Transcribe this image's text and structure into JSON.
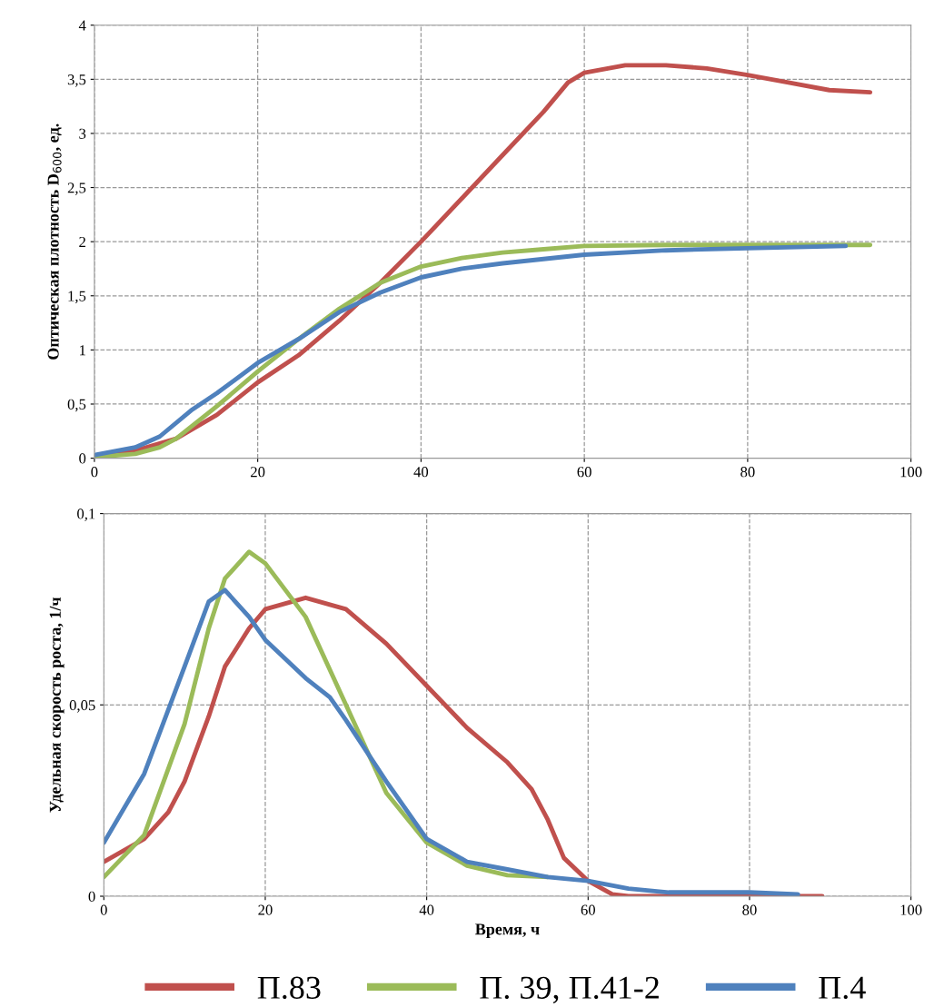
{
  "chart_data": [
    {
      "type": "line",
      "ylabel": "Оптическая плотность D$_{600}$, ед.",
      "xlim": [
        0,
        100
      ],
      "xticks": [
        0,
        20,
        40,
        60,
        80,
        100
      ],
      "ylim": [
        0,
        4
      ],
      "yticks": [
        0,
        {
          "value": 0.5,
          "label": "0,5"
        },
        1,
        {
          "value": 1.5,
          "label": "1,5"
        },
        2,
        {
          "value": 2.5,
          "label": "2,5"
        },
        3,
        {
          "value": 3.5,
          "label": "3,5"
        },
        4
      ],
      "grid": true,
      "line_style": "solid",
      "series": [
        {
          "color": "#c0504d",
          "x": [
            0,
            5,
            10,
            15,
            20,
            25,
            30,
            35,
            40,
            45,
            50,
            55,
            58,
            60,
            65,
            70,
            75,
            80,
            85,
            90,
            95
          ],
          "values": [
            0.02,
            0.07,
            0.18,
            0.4,
            0.7,
            0.95,
            1.27,
            1.62,
            2.0,
            2.4,
            2.8,
            3.2,
            3.47,
            3.56,
            3.63,
            3.63,
            3.6,
            3.54,
            3.47,
            3.4,
            3.38
          ]
        },
        {
          "color": "#9bbb59",
          "x": [
            0,
            5,
            8,
            10,
            15,
            20,
            25,
            30,
            35,
            40,
            45,
            50,
            55,
            60,
            70,
            80,
            95
          ],
          "values": [
            0.01,
            0.04,
            0.1,
            0.18,
            0.48,
            0.8,
            1.1,
            1.38,
            1.62,
            1.77,
            1.85,
            1.9,
            1.93,
            1.96,
            1.97,
            1.97,
            1.97
          ]
        },
        {
          "color": "#4f81bd",
          "x": [
            0,
            5,
            8,
            12,
            15,
            20,
            25,
            30,
            35,
            40,
            45,
            50,
            60,
            70,
            80,
            92
          ],
          "values": [
            0.03,
            0.1,
            0.2,
            0.45,
            0.6,
            0.88,
            1.1,
            1.35,
            1.53,
            1.67,
            1.75,
            1.8,
            1.88,
            1.92,
            1.94,
            1.96
          ]
        }
      ]
    },
    {
      "type": "line",
      "xlabel": "Время, ч",
      "ylabel": "Удельная скорость роста, 1/ч",
      "xlim": [
        0,
        100
      ],
      "xticks": [
        0,
        20,
        40,
        60,
        80,
        100
      ],
      "ylim": [
        0,
        0.1
      ],
      "yticks": [
        0,
        {
          "value": 0.05,
          "label": "0,05"
        },
        {
          "value": 0.1,
          "label": "0,1"
        }
      ],
      "grid": true,
      "line_style": "solid",
      "legend": "bottom",
      "series": [
        {
          "name": "П.83",
          "color": "#c0504d",
          "x": [
            0,
            5,
            8,
            10,
            13,
            15,
            18,
            20,
            25,
            30,
            35,
            40,
            45,
            50,
            53,
            55,
            57,
            60,
            63,
            65,
            80,
            89
          ],
          "values": [
            0.009,
            0.015,
            0.022,
            0.03,
            0.047,
            0.06,
            0.07,
            0.075,
            0.078,
            0.075,
            0.066,
            0.055,
            0.044,
            0.035,
            0.028,
            0.02,
            0.01,
            0.004,
            0.0005,
            0,
            0,
            0
          ]
        },
        {
          "name": "П. 39, П.41-2",
          "color": "#9bbb59",
          "x": [
            0,
            5,
            10,
            13,
            15,
            18,
            20,
            25,
            30,
            35,
            40,
            45,
            50,
            55
          ],
          "values": [
            0.005,
            0.016,
            0.045,
            0.07,
            0.083,
            0.09,
            0.087,
            0.073,
            0.05,
            0.027,
            0.014,
            0.008,
            0.0055,
            0.005
          ]
        },
        {
          "name": "П.4",
          "color": "#4f81bd",
          "x": [
            0,
            5,
            10,
            13,
            15,
            18,
            20,
            25,
            28,
            30,
            35,
            40,
            45,
            50,
            55,
            60,
            65,
            70,
            80,
            86
          ],
          "values": [
            0.014,
            0.032,
            0.06,
            0.077,
            0.08,
            0.073,
            0.067,
            0.057,
            0.052,
            0.046,
            0.03,
            0.015,
            0.009,
            0.007,
            0.005,
            0.004,
            0.002,
            0.001,
            0.001,
            0.0005
          ]
        }
      ]
    }
  ]
}
